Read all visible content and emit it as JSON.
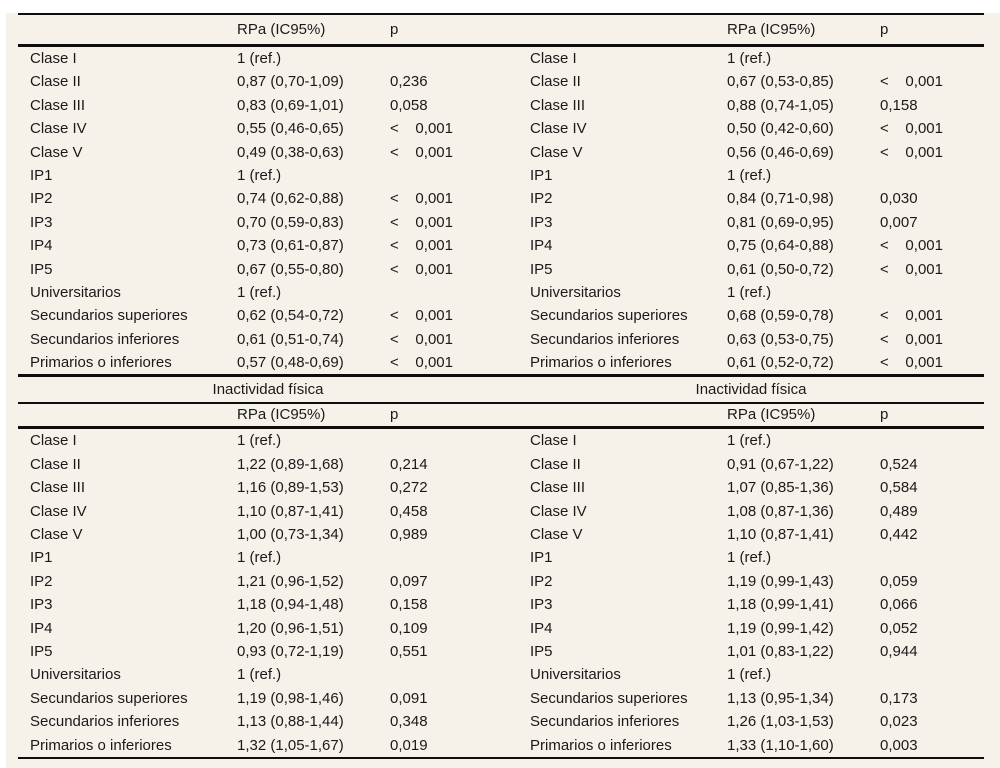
{
  "page": {
    "panel_bg": "#f6f2ea",
    "rule_color": "#0e0e0e",
    "text_color": "#1a1a1a"
  },
  "col_headers": {
    "rpa": "RPa (IC95%)",
    "p": "p"
  },
  "sections": [
    {
      "halves": [
        {
          "rows": [
            {
              "label": "Clase I",
              "rpa": "1 (ref.)",
              "p": ""
            },
            {
              "label": "Clase II",
              "rpa": "0,87 (0,70-1,09)",
              "p": "0,236"
            },
            {
              "label": "Clase III",
              "rpa": "0,83 (0,69-1,01)",
              "p": "0,058"
            },
            {
              "label": "Clase IV",
              "rpa": "0,55 (0,46-0,65)",
              "p": "<    0,001"
            },
            {
              "label": "Clase V",
              "rpa": "0,49 (0,38-0,63)",
              "p": "<    0,001"
            },
            {
              "label": "IP1",
              "rpa": "1 (ref.)",
              "p": ""
            },
            {
              "label": "IP2",
              "rpa": "0,74 (0,62-0,88)",
              "p": "<    0,001"
            },
            {
              "label": "IP3",
              "rpa": "0,70 (0,59-0,83)",
              "p": "<    0,001"
            },
            {
              "label": "IP4",
              "rpa": "0,73 (0,61-0,87)",
              "p": "<    0,001"
            },
            {
              "label": "IP5",
              "rpa": "0,67 (0,55-0,80)",
              "p": "<    0,001"
            },
            {
              "label": "Universitarios",
              "rpa": "1 (ref.)",
              "p": ""
            },
            {
              "label": "Secundarios superiores",
              "rpa": "0,62 (0,54-0,72)",
              "p": "<    0,001"
            },
            {
              "label": "Secundarios inferiores",
              "rpa": "0,61 (0,51-0,74)",
              "p": "<    0,001"
            },
            {
              "label": "Primarios o inferiores",
              "rpa": "0,57 (0,48-0,69)",
              "p": "<    0,001"
            }
          ]
        },
        {
          "rows": [
            {
              "label": "Clase I",
              "rpa": "1 (ref.)",
              "p": ""
            },
            {
              "label": "Clase II",
              "rpa": "0,67 (0,53-0,85)",
              "p": "<    0,001"
            },
            {
              "label": "Clase III",
              "rpa": "0,88 (0,74-1,05)",
              "p": "0,158"
            },
            {
              "label": "Clase IV",
              "rpa": "0,50 (0,42-0,60)",
              "p": "<    0,001"
            },
            {
              "label": "Clase V",
              "rpa": "0,56 (0,46-0,69)",
              "p": "<    0,001"
            },
            {
              "label": "IP1",
              "rpa": "1 (ref.)",
              "p": ""
            },
            {
              "label": "IP2",
              "rpa": "0,84 (0,71-0,98)",
              "p": "0,030"
            },
            {
              "label": "IP3",
              "rpa": "0,81 (0,69-0,95)",
              "p": "0,007"
            },
            {
              "label": "IP4",
              "rpa": "0,75 (0,64-0,88)",
              "p": "<    0,001"
            },
            {
              "label": "IP5",
              "rpa": "0,61 (0,50-0,72)",
              "p": "<    0,001"
            },
            {
              "label": "Universitarios",
              "rpa": "1 (ref.)",
              "p": ""
            },
            {
              "label": "Secundarios superiores",
              "rpa": "0,68 (0,59-0,78)",
              "p": "<    0,001"
            },
            {
              "label": "Secundarios inferiores",
              "rpa": "0,63 (0,53-0,75)",
              "p": "<    0,001"
            },
            {
              "label": "Primarios o inferiores",
              "rpa": "0,61 (0,52-0,72)",
              "p": "<    0,001"
            }
          ]
        }
      ]
    },
    {
      "titles": [
        "Inactividad física",
        "Inactividad física"
      ],
      "halves": [
        {
          "rows": [
            {
              "label": "Clase I",
              "rpa": "1 (ref.)",
              "p": ""
            },
            {
              "label": "Clase II",
              "rpa": "1,22 (0,89-1,68)",
              "p": "0,214"
            },
            {
              "label": "Clase III",
              "rpa": "1,16 (0,89-1,53)",
              "p": "0,272"
            },
            {
              "label": "Clase IV",
              "rpa": "1,10 (0,87-1,41)",
              "p": "0,458"
            },
            {
              "label": "Clase V",
              "rpa": "1,00 (0,73-1,34)",
              "p": "0,989"
            },
            {
              "label": "IP1",
              "rpa": "1 (ref.)",
              "p": ""
            },
            {
              "label": "IP2",
              "rpa": "1,21 (0,96-1,52)",
              "p": "0,097"
            },
            {
              "label": "IP3",
              "rpa": "1,18 (0,94-1,48)",
              "p": "0,158"
            },
            {
              "label": "IP4",
              "rpa": "1,20 (0,96-1,51)",
              "p": "0,109"
            },
            {
              "label": "IP5",
              "rpa": "0,93 (0,72-1,19)",
              "p": "0,551"
            },
            {
              "label": "Universitarios",
              "rpa": "1 (ref.)",
              "p": ""
            },
            {
              "label": "Secundarios superiores",
              "rpa": "1,19 (0,98-1,46)",
              "p": "0,091"
            },
            {
              "label": "Secundarios inferiores",
              "rpa": "1,13 (0,88-1,44)",
              "p": "0,348"
            },
            {
              "label": "Primarios o inferiores",
              "rpa": "1,32 (1,05-1,67)",
              "p": "0,019"
            }
          ]
        },
        {
          "rows": [
            {
              "label": "Clase I",
              "rpa": "1 (ref.)",
              "p": ""
            },
            {
              "label": "Clase II",
              "rpa": "0,91 (0,67-1,22)",
              "p": "0,524"
            },
            {
              "label": "Clase III",
              "rpa": "1,07 (0,85-1,36)",
              "p": "0,584"
            },
            {
              "label": "Clase IV",
              "rpa": "1,08 (0,87-1,36)",
              "p": "0,489"
            },
            {
              "label": "Clase V",
              "rpa": "1,10 (0,87-1,41)",
              "p": "0,442"
            },
            {
              "label": "IP1",
              "rpa": "1 (ref.)",
              "p": ""
            },
            {
              "label": "IP2",
              "rpa": "1,19 (0,99-1,43)",
              "p": "0,059"
            },
            {
              "label": "IP3",
              "rpa": "1,18 (0,99-1,41)",
              "p": "0,066"
            },
            {
              "label": "IP4",
              "rpa": "1,19 (0,99-1,42)",
              "p": "0,052"
            },
            {
              "label": "IP5",
              "rpa": "1,01 (0,83-1,22)",
              "p": "0,944"
            },
            {
              "label": "Universitarios",
              "rpa": "1 (ref.)",
              "p": ""
            },
            {
              "label": "Secundarios superiores",
              "rpa": "1,13 (0,95-1,34)",
              "p": "0,173"
            },
            {
              "label": "Secundarios inferiores",
              "rpa": "1,26 (1,03-1,53)",
              "p": "0,023"
            },
            {
              "label": "Primarios o inferiores",
              "rpa": "1,33 (1,10-1,60)",
              "p": "0,003"
            }
          ]
        }
      ]
    }
  ]
}
